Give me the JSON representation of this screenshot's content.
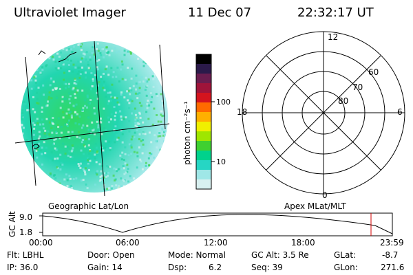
{
  "header": {
    "instrument": "Ultraviolet Imager",
    "date": "11 Dec 07",
    "time": "22:32:17 UT"
  },
  "colorbar": {
    "unit_label": "photon cm⁻²s⁻¹",
    "ticks": [
      "100",
      "10"
    ],
    "colors": [
      "#000000",
      "#2b1a4a",
      "#6a1d4f",
      "#a0143a",
      "#d4141e",
      "#ff6a00",
      "#ffb000",
      "#f0f000",
      "#9fe600",
      "#3fd030",
      "#00d28c",
      "#26d6c4",
      "#9fe7e7",
      "#d8f0f0"
    ]
  },
  "globe": {
    "caption": "Geographic Lat/Lon"
  },
  "polar": {
    "caption": "Apex MLat/MLT",
    "mlt_labels": [
      "12",
      "18",
      "6",
      "0"
    ],
    "lat_labels": [
      "60",
      "70",
      "80"
    ]
  },
  "altitude_plot": {
    "ylabel": "GC Alt",
    "yticks": [
      "9.0",
      "1.8"
    ],
    "xticks": [
      "00:00",
      "06:00",
      "12:00",
      "18:00",
      "23:59"
    ],
    "marker_color": "#d00000"
  },
  "status": {
    "flt": "Flt: LBHL",
    "ip": "IP: 36.0",
    "door": "Door: Open",
    "gain": "Gain: 14",
    "mode": "Mode: Normal",
    "dsp_label": "Dsp:",
    "dsp_value": "6.2",
    "gc_alt": "GC Alt: 3.5 Re",
    "seq": "Seq: 39",
    "glat_label": "GLat:",
    "glat_value": "-8.7",
    "glon_label": "GLon:",
    "glon_value": "271.6"
  }
}
